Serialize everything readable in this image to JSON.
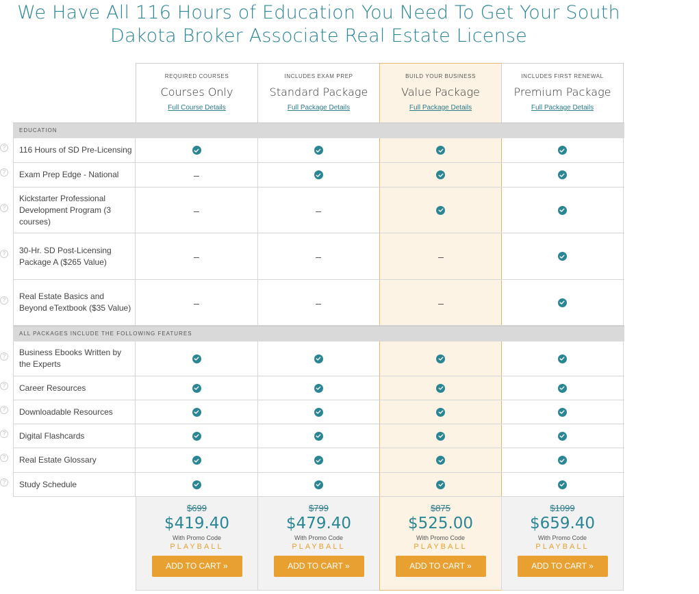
{
  "page": {
    "title": "We Have All 116 Hours of Education You Need To Get Your South Dakota Broker Associate Real Estate License"
  },
  "packages": [
    {
      "tag": "REQUIRED COURSES",
      "name": "Courses Only",
      "details_link": "Full Course Details",
      "old_price": "$699",
      "price": "$419.40",
      "promo_note": "With Promo Code",
      "promo_code": "PLAYBALL",
      "cart_label": "ADD TO CART »",
      "featured": false
    },
    {
      "tag": "INCLUDES EXAM PREP",
      "name": "Standard Package",
      "details_link": "Full Package Details",
      "old_price": "$799",
      "price": "$479.40",
      "promo_note": "With Promo Code",
      "promo_code": "PLAYBALL",
      "cart_label": "ADD TO CART »",
      "featured": false
    },
    {
      "tag": "BUILD YOUR BUSINESS",
      "name": "Value Package",
      "details_link": "Full Package Details",
      "old_price": "$875",
      "price": "$525.00",
      "promo_note": "With Promo Code",
      "promo_code": "PLAYBALL",
      "cart_label": "ADD TO CART »",
      "featured": true
    },
    {
      "tag": "INCLUDES FIRST RENEWAL",
      "name": "Premium Package",
      "details_link": "Full Package Details",
      "old_price": "$1099",
      "price": "$659.40",
      "promo_note": "With Promo Code",
      "promo_code": "PLAYBALL",
      "cart_label": "ADD TO CART »",
      "featured": false
    }
  ],
  "sections": [
    {
      "title": "EDUCATION",
      "rows": [
        {
          "label": "116 Hours of SD Pre-Licensing",
          "included": [
            true,
            true,
            true,
            true
          ]
        },
        {
          "label": "Exam Prep Edge - National",
          "included": [
            false,
            true,
            true,
            true
          ]
        },
        {
          "label": "Kickstarter Professional Development Program (3 courses)",
          "included": [
            false,
            false,
            true,
            true
          ]
        },
        {
          "label": "30-Hr. SD Post-Licensing Package A ($265 Value)",
          "included": [
            false,
            false,
            false,
            true
          ]
        },
        {
          "label": "Real Estate Basics and Beyond eTextbook ($35 Value)",
          "included": [
            false,
            false,
            false,
            true
          ]
        }
      ]
    },
    {
      "title": "ALL PACKAGES INCLUDE THE FOLLOWING FEATURES",
      "rows": [
        {
          "label": "Business Ebooks Written by the Experts",
          "included": [
            true,
            true,
            true,
            true
          ]
        },
        {
          "label": "Career Resources",
          "included": [
            true,
            true,
            true,
            true
          ]
        },
        {
          "label": "Downloadable Resources",
          "included": [
            true,
            true,
            true,
            true
          ]
        },
        {
          "label": "Digital Flashcards",
          "included": [
            true,
            true,
            true,
            true
          ]
        },
        {
          "label": "Real Estate Glossary",
          "included": [
            true,
            true,
            true,
            true
          ]
        },
        {
          "label": "Study Schedule",
          "included": [
            true,
            true,
            true,
            true
          ]
        }
      ]
    }
  ],
  "icons": {
    "help": "question-circle-icon",
    "check": "check-circle-icon",
    "dash": "dash-icon"
  },
  "colors": {
    "accent": "#2a8595",
    "cta": "#e8a030",
    "featured_bg": "#fdf3e4"
  }
}
